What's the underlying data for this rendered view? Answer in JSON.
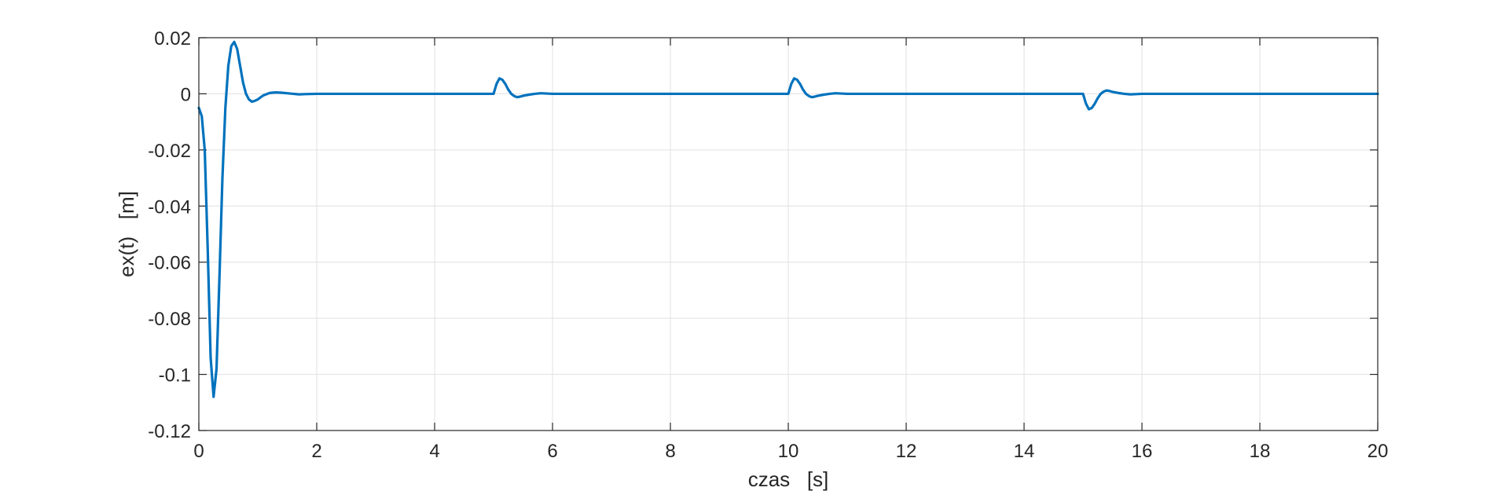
{
  "chart_data": {
    "type": "line",
    "xlabel": "czas   [s]",
    "ylabel": "ex(t)   [m]",
    "xlim": [
      0,
      20
    ],
    "ylim": [
      -0.12,
      0.02
    ],
    "xticks": [
      0,
      2,
      4,
      6,
      8,
      10,
      12,
      14,
      16,
      18,
      20
    ],
    "xtick_labels": [
      "0",
      "2",
      "4",
      "6",
      "8",
      "10",
      "12",
      "14",
      "16",
      "18",
      "20"
    ],
    "yticks": [
      0.02,
      0,
      -0.02,
      -0.04,
      -0.06,
      -0.08,
      -0.1,
      -0.12
    ],
    "ytick_labels": [
      "0.02",
      "0",
      "-0.02",
      "-0.04",
      "-0.06",
      "-0.08",
      "-0.1",
      "-0.12"
    ],
    "grid": true,
    "line_color": "#0072BD",
    "axes_color": "#262626",
    "grid_color": "#e0e0e0",
    "series": [
      {
        "x": [
          0,
          0.05,
          0.1,
          0.15,
          0.2,
          0.25,
          0.3,
          0.35,
          0.4,
          0.45,
          0.5,
          0.55,
          0.6,
          0.65,
          0.7,
          0.75,
          0.8,
          0.85,
          0.9,
          0.95,
          1.0,
          1.05,
          1.1,
          1.2,
          1.3,
          1.4,
          1.5,
          1.6,
          1.7,
          1.8,
          2.0,
          3.0,
          4.0,
          5.0,
          5.05,
          5.1,
          5.15,
          5.2,
          5.25,
          5.3,
          5.35,
          5.4,
          5.45,
          5.5,
          5.6,
          5.7,
          5.8,
          5.9,
          6.0,
          7.0,
          8.0,
          9.0,
          10.0,
          10.05,
          10.1,
          10.15,
          10.2,
          10.25,
          10.3,
          10.35,
          10.4,
          10.45,
          10.5,
          10.6,
          10.7,
          10.8,
          10.9,
          11.0,
          12.0,
          13.0,
          14.0,
          15.0,
          15.05,
          15.1,
          15.15,
          15.2,
          15.25,
          15.3,
          15.35,
          15.4,
          15.45,
          15.5,
          15.6,
          15.7,
          15.8,
          15.9,
          16.0,
          17.0,
          18.0,
          19.0,
          20.0
        ],
        "y": [
          -0.005,
          -0.008,
          -0.02,
          -0.055,
          -0.094,
          -0.108,
          -0.098,
          -0.065,
          -0.03,
          -0.005,
          0.01,
          0.017,
          0.0185,
          0.016,
          0.01,
          0.004,
          0.0,
          -0.002,
          -0.0028,
          -0.0025,
          -0.002,
          -0.0012,
          -0.0005,
          0.0003,
          0.0005,
          0.0004,
          0.0002,
          0.0,
          -0.0002,
          -0.0001,
          0.0,
          0.0,
          0.0,
          0.0,
          0.0035,
          0.0055,
          0.005,
          0.0035,
          0.0015,
          0.0,
          -0.0008,
          -0.0012,
          -0.001,
          -0.0007,
          -0.0003,
          0.0,
          0.0002,
          0.0001,
          0.0,
          0.0,
          0.0,
          0.0,
          0.0,
          0.0035,
          0.0055,
          0.005,
          0.0035,
          0.0015,
          0.0,
          -0.0008,
          -0.0012,
          -0.001,
          -0.0007,
          -0.0003,
          0.0,
          0.0002,
          0.0001,
          0.0,
          0.0,
          0.0,
          0.0,
          0.0,
          -0.0035,
          -0.0055,
          -0.005,
          -0.0035,
          -0.0015,
          0.0,
          0.0008,
          0.0012,
          0.001,
          0.0007,
          0.0003,
          0.0,
          -0.0002,
          -0.0001,
          0.0,
          0.0,
          0.0,
          0.0,
          0.0
        ]
      }
    ]
  }
}
